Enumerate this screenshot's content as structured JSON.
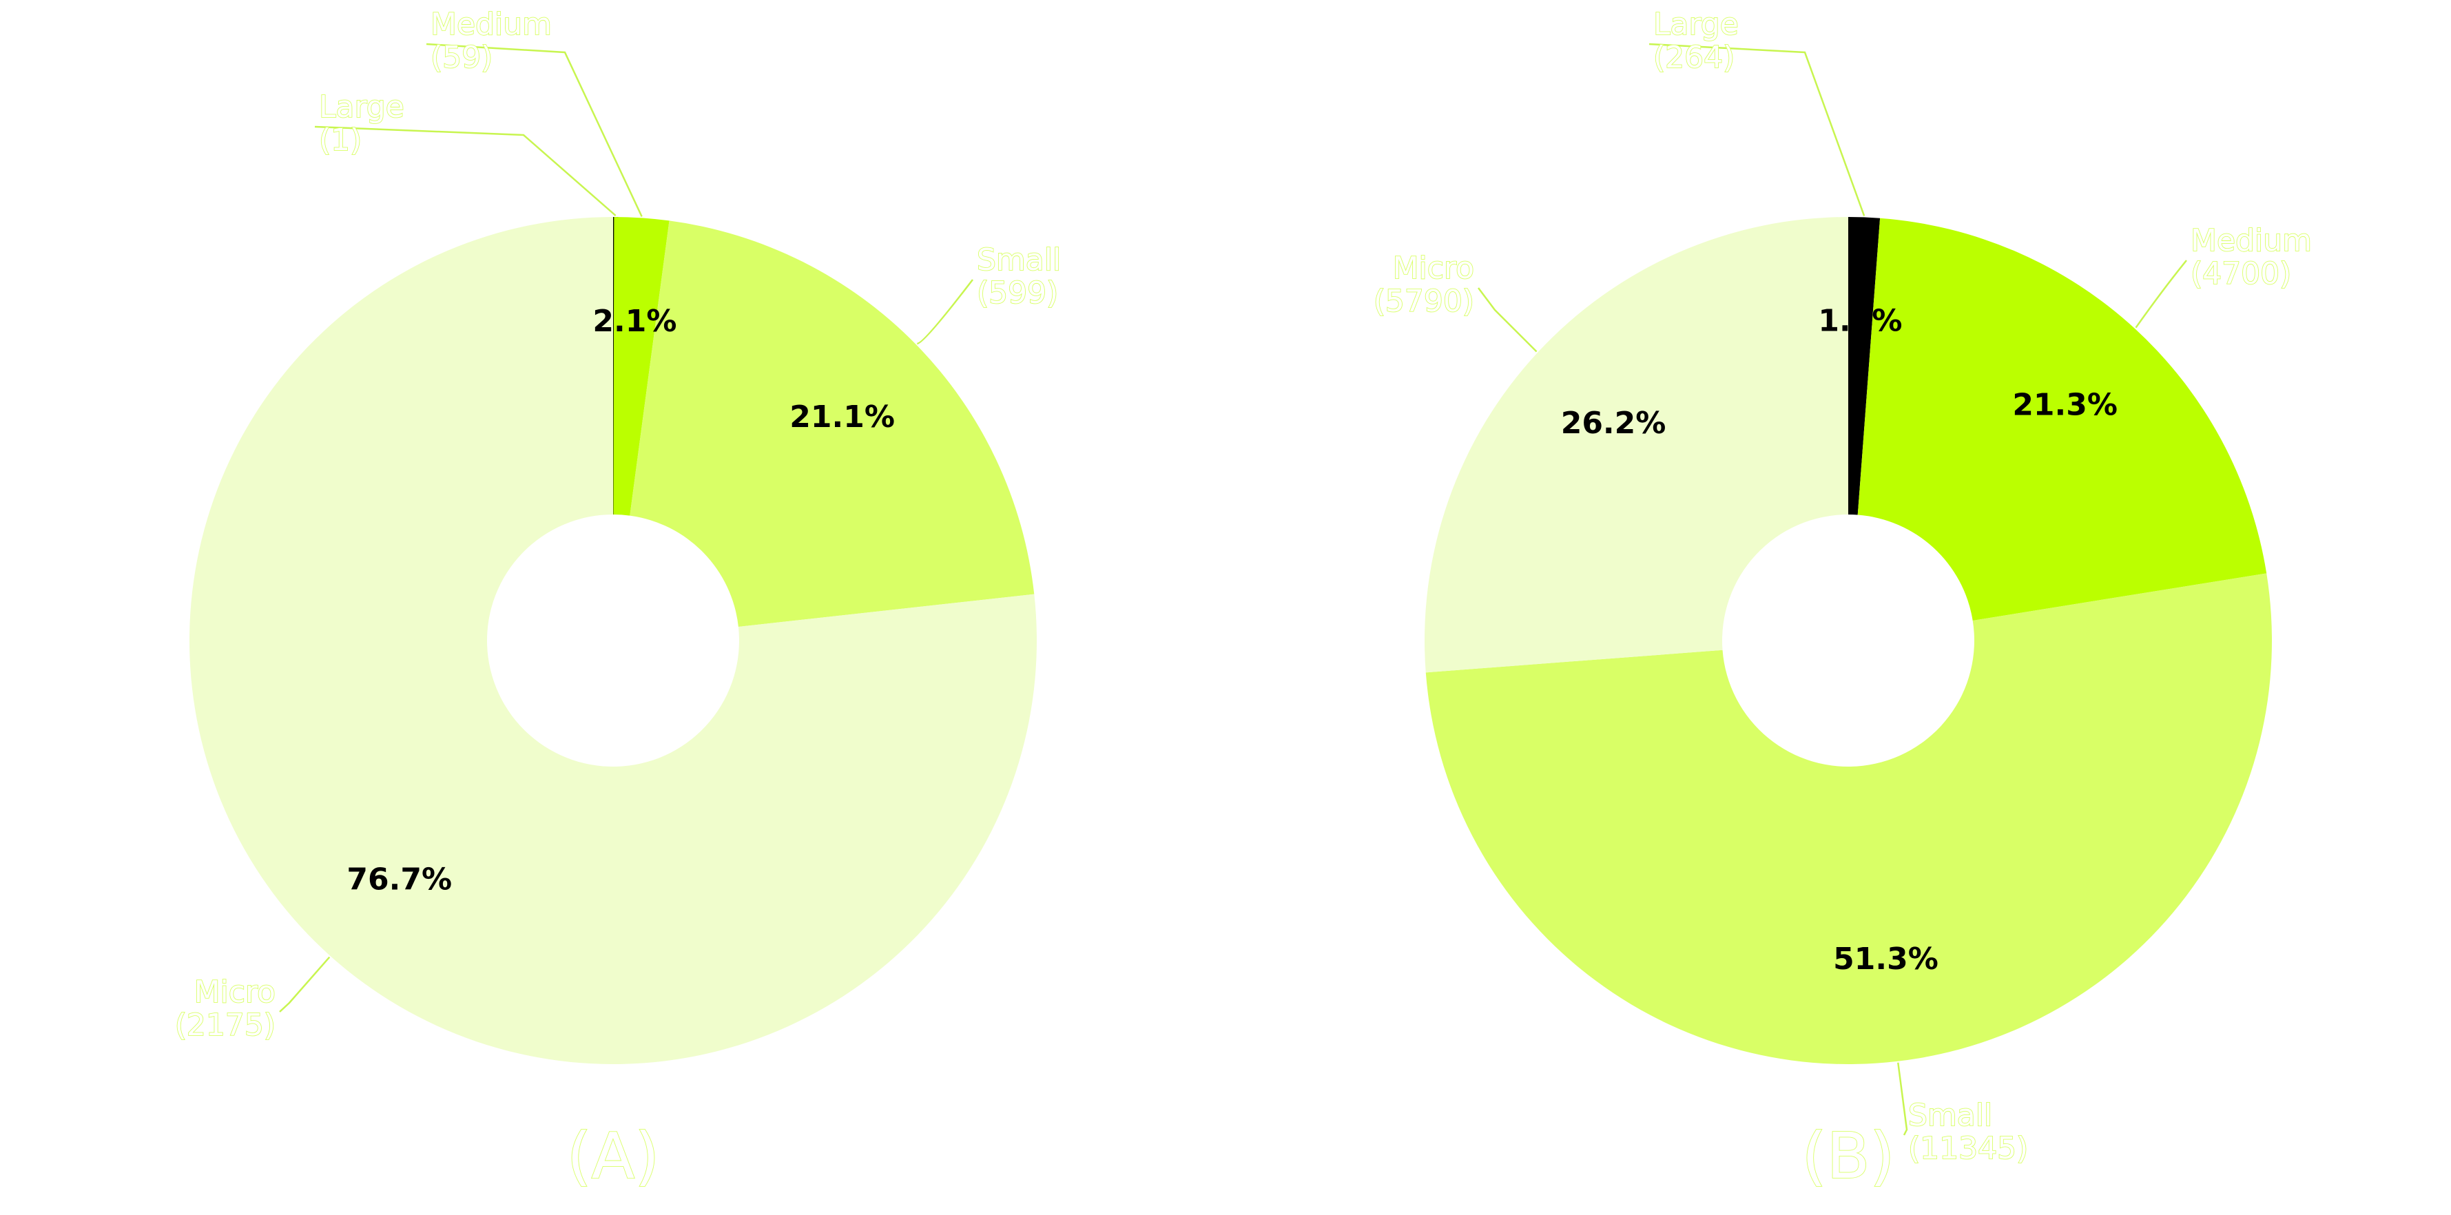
{
  "colors": {
    "label": "#d9ff66",
    "leader": "#c8f550",
    "pct": "#000000",
    "Large": "#000000",
    "Medium": "#bbff00",
    "Small": "#d9ff66",
    "Micro": "#f0fdcc"
  },
  "chart_data": [
    {
      "type": "pie",
      "subtype": "donut",
      "panel_label": "(A)",
      "start": "top",
      "direction": "clockwise",
      "slices": [
        {
          "label": "Large",
          "count_text": "(1)",
          "value": 1,
          "pct_text": "",
          "color": "#000000"
        },
        {
          "label": "Medium",
          "count_text": "(59)",
          "value": 59,
          "pct_text": "2.1%",
          "color": "#bbff00"
        },
        {
          "label": "Small",
          "count_text": "(599)",
          "value": 599,
          "pct_text": "21.1%",
          "color": "#d9ff66"
        },
        {
          "label": "Micro",
          "count_text": "(2175)",
          "value": 2175,
          "pct_text": "76.7%",
          "color": "#f0fdcc"
        }
      ]
    },
    {
      "type": "pie",
      "subtype": "donut",
      "panel_label": "(B)",
      "start": "top",
      "direction": "clockwise",
      "slices": [
        {
          "label": "Large",
          "count_text": "(264)",
          "value": 264,
          "pct_text": "1.2%",
          "color": "#000000"
        },
        {
          "label": "Medium",
          "count_text": "(4700)",
          "value": 4700,
          "pct_text": "21.3%",
          "color": "#bbff00"
        },
        {
          "label": "Small",
          "count_text": "(11345)",
          "value": 11345,
          "pct_text": "51.3%",
          "color": "#d9ff66"
        },
        {
          "label": "Micro",
          "count_text": "(5790)",
          "value": 5790,
          "pct_text": "26.2%",
          "color": "#f0fdcc"
        }
      ]
    }
  ]
}
